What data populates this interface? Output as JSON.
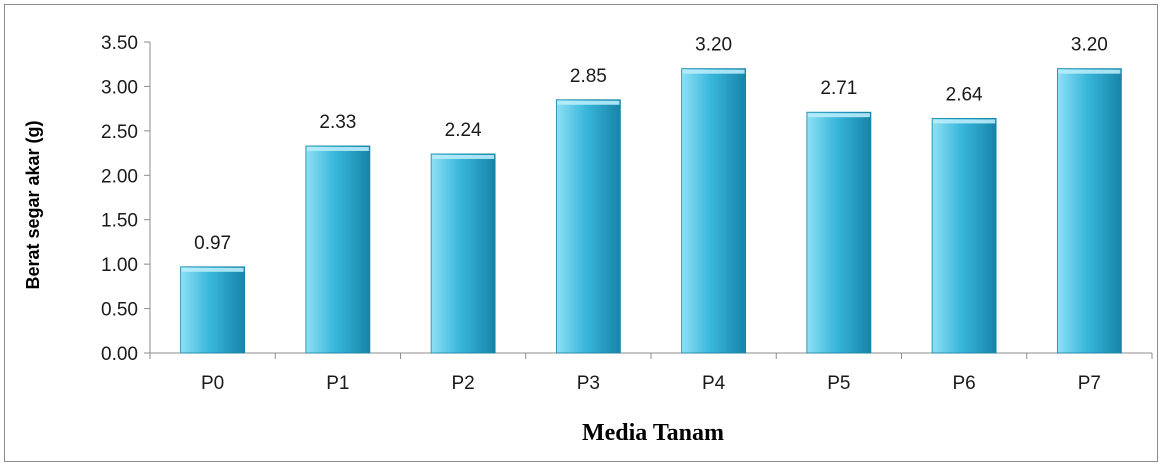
{
  "chart_data": {
    "type": "bar",
    "categories": [
      "P0",
      "P1",
      "P2",
      "P3",
      "P4",
      "P5",
      "P6",
      "P7"
    ],
    "values": [
      0.97,
      2.33,
      2.24,
      2.85,
      3.2,
      2.71,
      2.64,
      3.2
    ],
    "data_labels": [
      "0.97",
      "2.33",
      "2.24",
      "2.85",
      "3.20",
      "2.71",
      "2.64",
      "3.20"
    ],
    "title": "",
    "xlabel": "Media Tanam",
    "ylabel": "Berat segar akar (g)",
    "ylim": [
      0,
      3.5
    ],
    "yticks": [
      "0.00",
      "0.50",
      "1.00",
      "1.50",
      "2.00",
      "2.50",
      "3.00",
      "3.50"
    ],
    "grid": false,
    "legend": "none",
    "colors": {
      "bar": "#3ab7dc",
      "bar_light": "#8ee0f5",
      "bar_dark": "#1684a8",
      "axis": "#8c8c8c"
    }
  }
}
